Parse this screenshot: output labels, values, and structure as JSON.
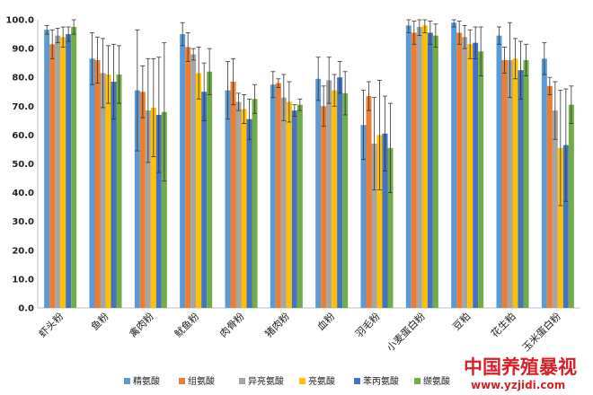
{
  "chart_data": {
    "type": "bar",
    "title": "",
    "xlabel": "",
    "ylabel": "",
    "ylim": [
      0,
      100
    ],
    "yticks": [
      "0.0",
      "10.0",
      "20.0",
      "30.0",
      "40.0",
      "50.0",
      "60.0",
      "70.0",
      "80.0",
      "90.0",
      "100.0"
    ],
    "error_bars": true,
    "legend_position": "bottom",
    "categories": [
      "虾头粉",
      "鱼粉",
      "禽肉粉",
      "鱿鱼粉",
      "肉骨粉",
      "猪肉粉",
      "血粉",
      "羽毛粉",
      "小麦蛋白粉",
      "豆粕",
      "花生粕",
      "玉米蛋白粉"
    ],
    "series": [
      {
        "name": "精氨酸",
        "color": "#5b9bd5",
        "values": [
          96.5,
          86.5,
          75.5,
          95.0,
          75.5,
          77.5,
          79.5,
          63.5,
          98.0,
          99.0,
          94.5,
          86.5
        ],
        "errors": [
          1.5,
          9.0,
          21.0,
          4.0,
          10.0,
          4.5,
          7.5,
          12.0,
          2.5,
          1.5,
          3.0,
          5.5
        ]
      },
      {
        "name": "组氨酸",
        "color": "#ed7d31",
        "values": [
          91.5,
          86.0,
          75.0,
          90.5,
          78.5,
          78.0,
          70.0,
          73.5,
          95.5,
          95.5,
          86.0,
          77.0
        ],
        "errors": [
          5.0,
          8.0,
          9.0,
          5.0,
          8.0,
          1.5,
          7.0,
          5.0,
          4.0,
          4.0,
          4.5,
          3.0
        ]
      },
      {
        "name": "异亮氨酸",
        "color": "#a5a5a5",
        "values": [
          94.5,
          81.5,
          68.5,
          88.0,
          71.5,
          73.0,
          79.0,
          57.0,
          97.5,
          94.0,
          86.0,
          68.5
        ],
        "errors": [
          2.5,
          12.0,
          18.0,
          2.0,
          3.0,
          8.0,
          8.0,
          16.0,
          3.0,
          4.0,
          13.0,
          10.0
        ]
      },
      {
        "name": "亮氨酸",
        "color": "#ffc000",
        "values": [
          94.0,
          81.0,
          69.5,
          81.5,
          69.0,
          71.5,
          75.5,
          60.0,
          98.0,
          91.5,
          86.5,
          55.5
        ],
        "errors": [
          3.5,
          10.0,
          17.0,
          9.0,
          5.0,
          7.0,
          5.5,
          19.0,
          2.5,
          5.0,
          7.0,
          20.0
        ]
      },
      {
        "name": "苯丙氨酸",
        "color": "#4472c4",
        "values": [
          95.0,
          78.5,
          67.0,
          75.0,
          65.5,
          68.5,
          80.0,
          60.5,
          95.5,
          92.0,
          82.5,
          56.5
        ],
        "errors": [
          2.5,
          13.0,
          20.0,
          10.0,
          7.0,
          2.0,
          5.5,
          13.0,
          4.0,
          5.5,
          10.0,
          19.5
        ]
      },
      {
        "name": "缬氨酸",
        "color": "#70ad47",
        "values": [
          97.5,
          81.0,
          68.0,
          82.0,
          72.5,
          70.5,
          74.5,
          55.5,
          94.5,
          89.0,
          86.0,
          70.5
        ],
        "errors": [
          2.5,
          10.0,
          24.0,
          8.0,
          5.0,
          2.0,
          7.5,
          15.5,
          4.0,
          8.5,
          5.5,
          6.5
        ]
      }
    ]
  },
  "watermark": {
    "logo_text": "中国养殖暴视",
    "url_text": "www.yzjidi.com"
  }
}
